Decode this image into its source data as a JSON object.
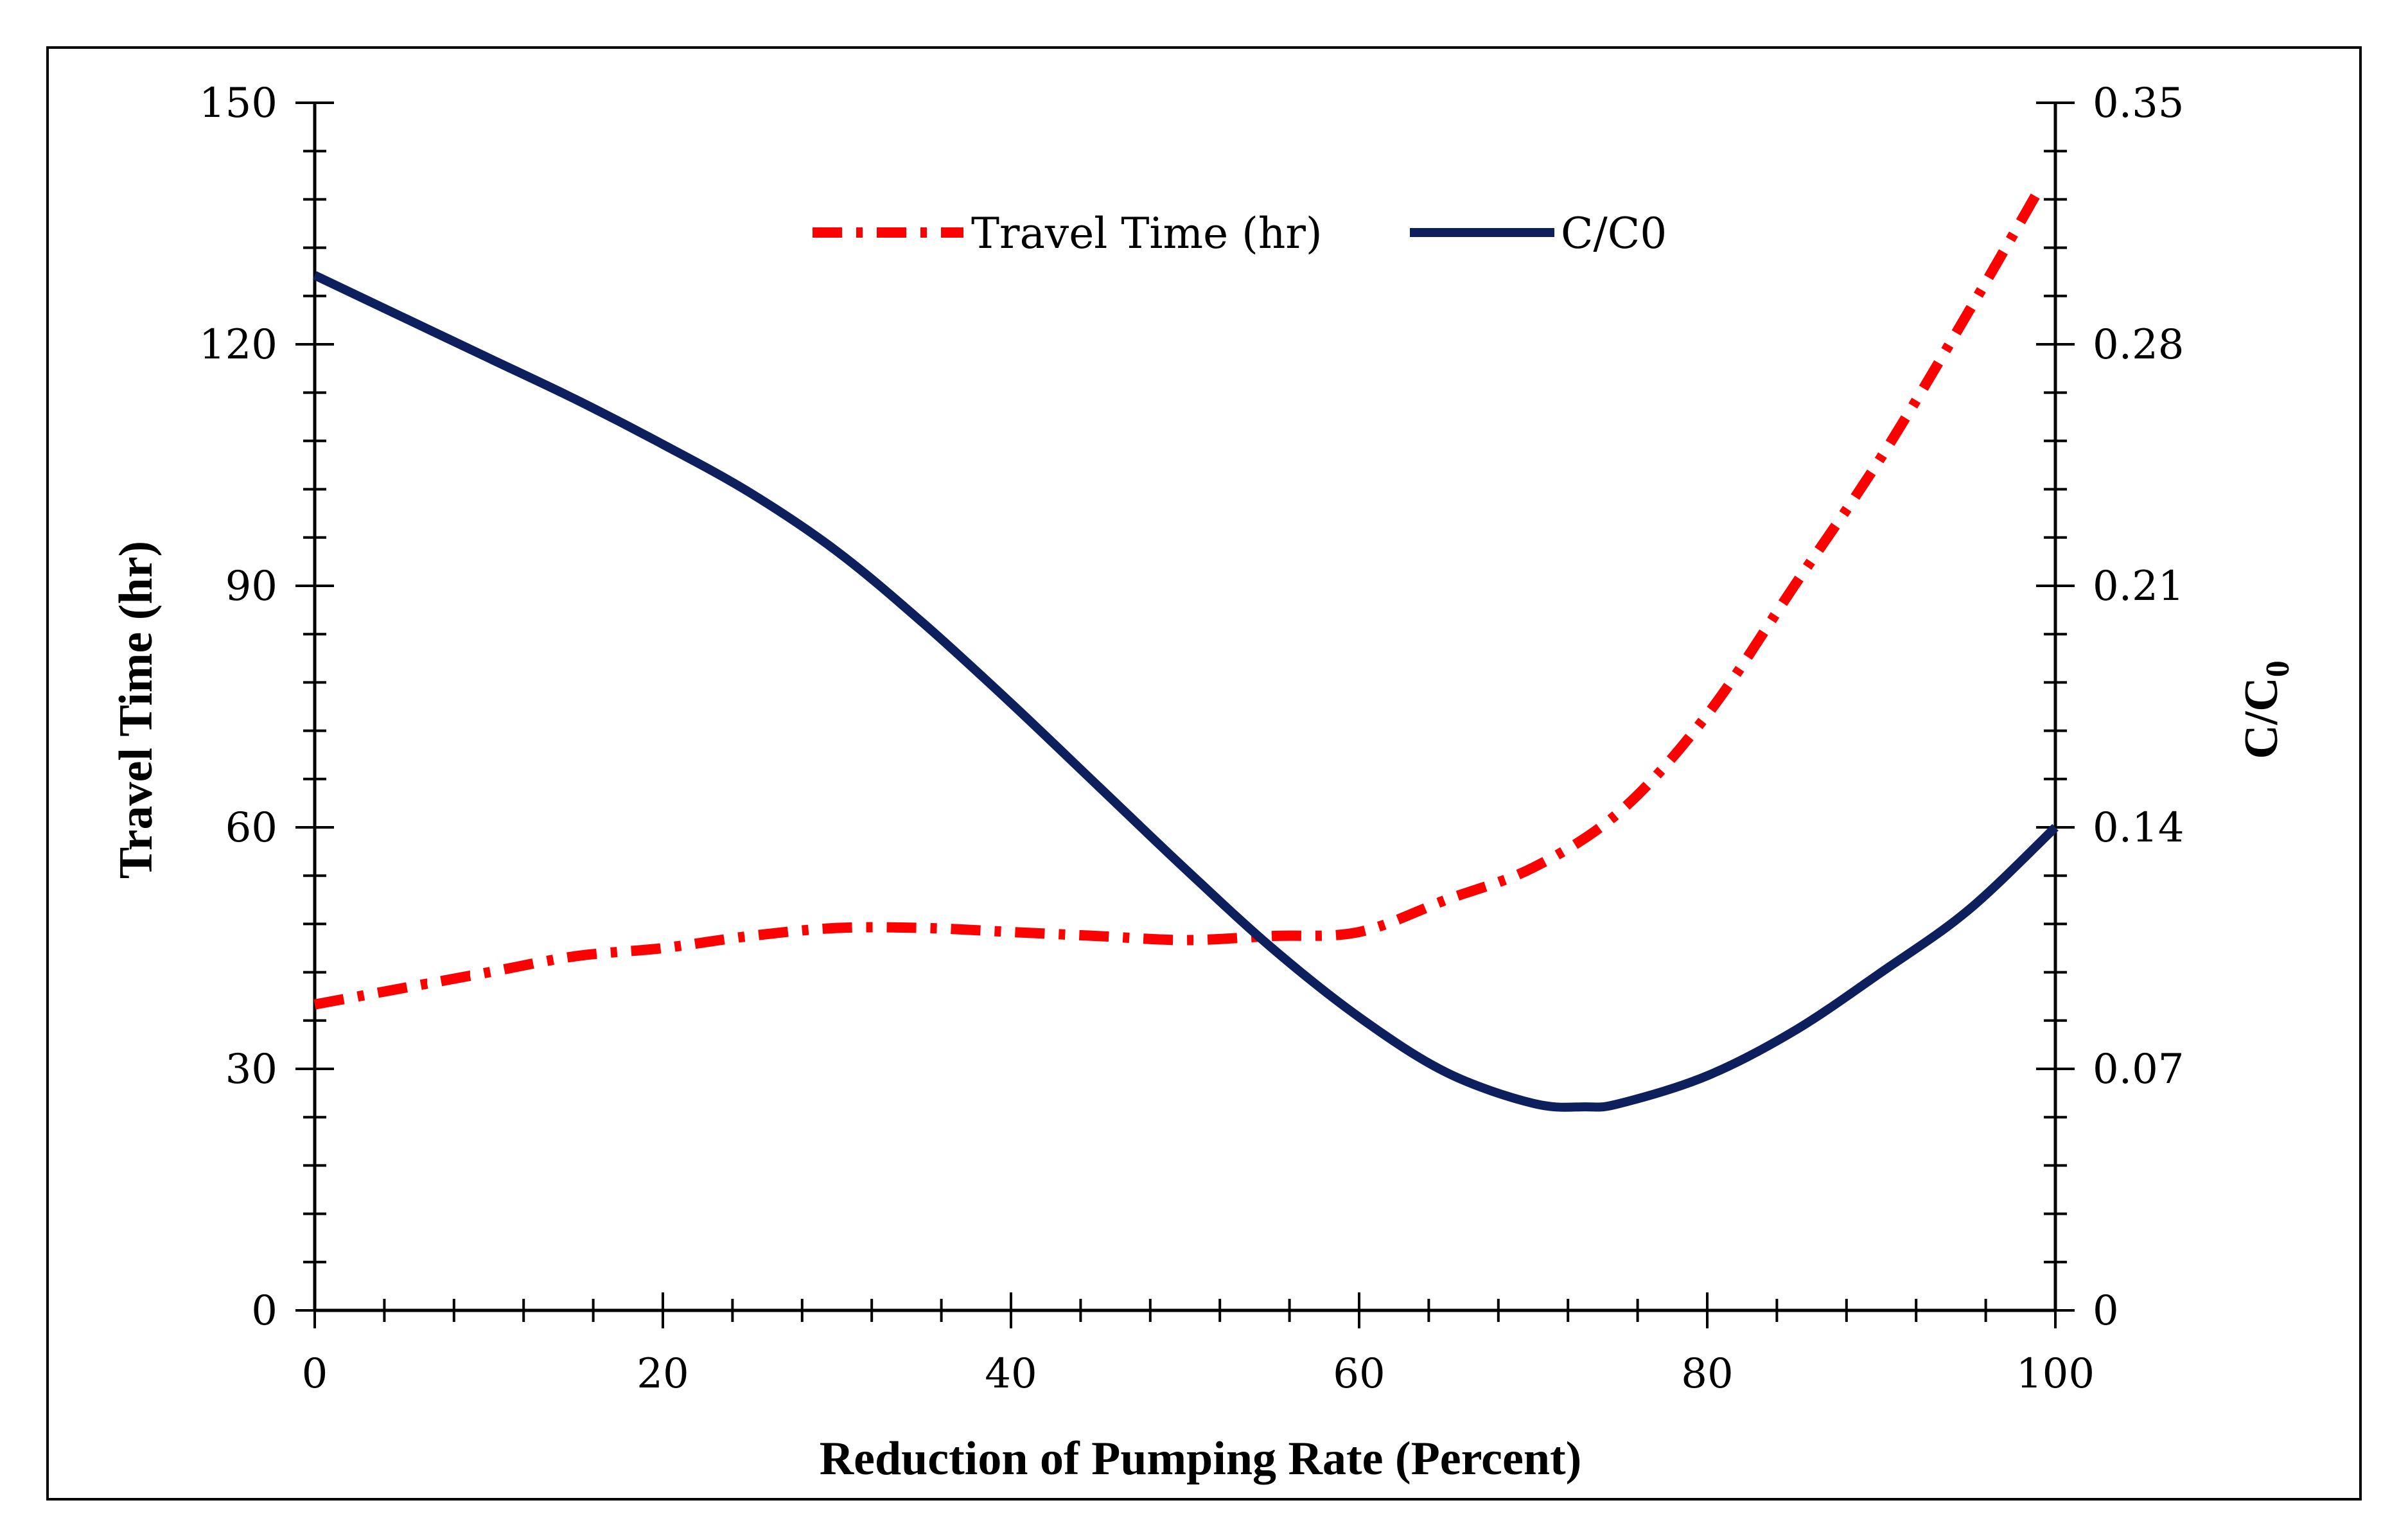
{
  "chart_data": {
    "type": "line",
    "title": "",
    "xlabel": "Reduction of Pumping Rate (Percent)",
    "ylabel_left": "Travel Time (hr)",
    "ylabel_right_main": "C/C",
    "ylabel_right_sub": "0",
    "xlim": [
      0,
      100
    ],
    "ylim_left": [
      0,
      150
    ],
    "ylim_right": [
      0,
      0.35
    ],
    "x_ticks": [
      "0",
      "20",
      "40",
      "60",
      "80",
      "100"
    ],
    "y_left_ticks": [
      "0",
      "30",
      "60",
      "90",
      "120",
      "150"
    ],
    "y_right_ticks": [
      "0",
      "0.07",
      "0.14",
      "0.21",
      "0.28",
      "0.35"
    ],
    "legend_position": "top-center",
    "series": [
      {
        "name": "Travel Time (hr)",
        "axis": "left",
        "style": "dash-dot",
        "color": "#ff0000",
        "x": [
          0,
          5,
          10,
          15,
          20,
          25,
          30,
          35,
          40,
          45,
          50,
          55,
          60,
          65,
          70,
          75,
          80,
          85,
          90,
          95,
          99
        ],
        "y": [
          38,
          40,
          42,
          44,
          45,
          46.5,
          47.5,
          47.5,
          47,
          46.5,
          46,
          46.5,
          47,
          51,
          55,
          62,
          74,
          90,
          106,
          124,
          139
        ]
      },
      {
        "name": "C/C0",
        "axis": "right",
        "style": "solid",
        "color": "#0d1f5c",
        "x": [
          0,
          5,
          10,
          15,
          20,
          25,
          30,
          35,
          40,
          45,
          50,
          55,
          60,
          65,
          70,
          73,
          75,
          80,
          85,
          90,
          95,
          100
        ],
        "y": [
          0.3,
          0.288,
          0.276,
          0.264,
          0.251,
          0.237,
          0.22,
          0.199,
          0.176,
          0.152,
          0.128,
          0.105,
          0.085,
          0.069,
          0.06,
          0.059,
          0.06,
          0.068,
          0.081,
          0.098,
          0.116,
          0.14
        ]
      }
    ]
  }
}
